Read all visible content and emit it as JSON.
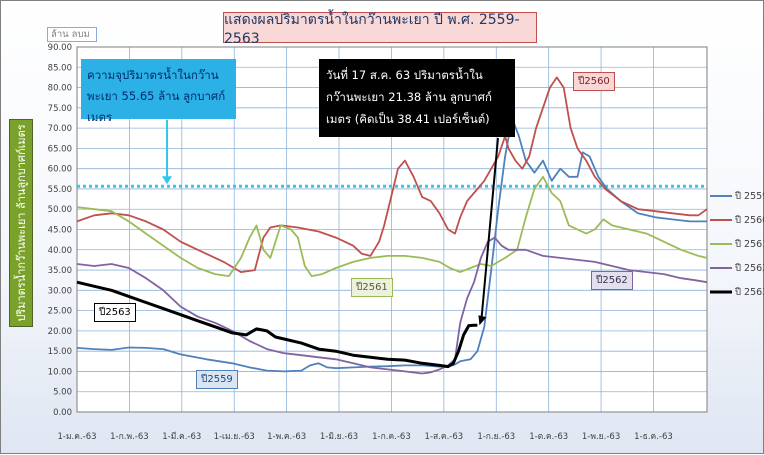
{
  "chart_data": {
    "type": "line",
    "title": "แสดงผลปริมาตรน้ำในกว๊านพะเยา ปี พ.ศ. 2559-2563",
    "unit_label": "ล้าน ลบม",
    "ylabel": "ปริมาตรน้ำกว๊านพะเยา ล้านลูกบาศก์เมตร",
    "ylim": [
      0,
      90
    ],
    "yticks": [
      "0.00",
      "5.00",
      "10.00",
      "15.00",
      "20.00",
      "25.00",
      "30.00",
      "35.00",
      "40.00",
      "45.00",
      "50.00",
      "55.00",
      "60.00",
      "65.00",
      "70.00",
      "75.00",
      "80.00",
      "85.00",
      "90.00"
    ],
    "xticks": [
      "1-ม.ค.-63",
      "1-ก.พ.-63",
      "1-มี.ค.-63",
      "1-เม.ย.-63",
      "1-พ.ค.-63",
      "1-มิ.ย.-63",
      "1-ก.ค.-63",
      "1-ส.ค.-63",
      "1-ก.ย.-63",
      "1-ต.ค.-63",
      "1-พ.ย.-63",
      "1-ธ.ค.-63"
    ],
    "grid": true,
    "legend_position": "right",
    "capacity": {
      "value": 55.65,
      "text": "ความจุปริมาตรน้ำในกว๊านพะเยา 55.65 ล้าน ลูกบาศก์เมตร"
    },
    "current_annotation": "วันที่  17 ส.ค. 63 ปริมาตรน้ำในกว๊านพะเยา 21.38 ล้าน ลูกบาศก์เมตร (คิดเป็น 38.41 เปอร์เซ็นต์)",
    "series": [
      {
        "name": "ปี 2559",
        "tag": "ปี2559",
        "color": "#4f81bd",
        "points": [
          [
            0,
            15.8
          ],
          [
            10,
            15.5
          ],
          [
            20,
            15.3
          ],
          [
            30,
            15.9
          ],
          [
            40,
            15.8
          ],
          [
            50,
            15.5
          ],
          [
            60,
            14.2
          ],
          [
            75,
            13.0
          ],
          [
            90,
            12.0
          ],
          [
            100,
            11.0
          ],
          [
            110,
            10.2
          ],
          [
            120,
            10.0
          ],
          [
            130,
            10.2
          ],
          [
            135,
            11.5
          ],
          [
            140,
            12.0
          ],
          [
            145,
            11.0
          ],
          [
            150,
            10.8
          ],
          [
            160,
            11.0
          ],
          [
            170,
            11.2
          ],
          [
            180,
            11.3
          ],
          [
            190,
            11.5
          ],
          [
            200,
            11.5
          ],
          [
            210,
            11.2
          ],
          [
            218,
            11.5
          ],
          [
            222,
            12.5
          ],
          [
            228,
            13.0
          ],
          [
            232,
            15.0
          ],
          [
            236,
            21.0
          ],
          [
            240,
            35.0
          ],
          [
            244,
            50.0
          ],
          [
            248,
            63.0
          ],
          [
            252,
            72.5
          ],
          [
            256,
            68.0
          ],
          [
            260,
            62.0
          ],
          [
            265,
            59.0
          ],
          [
            270,
            62.0
          ],
          [
            275,
            57.0
          ],
          [
            280,
            60.0
          ],
          [
            285,
            58.0
          ],
          [
            290,
            58.0
          ],
          [
            293,
            64.0
          ],
          [
            297,
            63.0
          ],
          [
            302,
            58.0
          ],
          [
            307,
            55.0
          ],
          [
            315,
            52.0
          ],
          [
            325,
            49.0
          ],
          [
            335,
            48.0
          ],
          [
            345,
            47.5
          ],
          [
            355,
            47.0
          ],
          [
            365,
            47.0
          ]
        ]
      },
      {
        "name": "ปี 2560",
        "tag": "ปี2560",
        "color": "#c0504d",
        "points": [
          [
            0,
            47.0
          ],
          [
            10,
            48.5
          ],
          [
            20,
            49.0
          ],
          [
            30,
            48.5
          ],
          [
            40,
            47.0
          ],
          [
            50,
            45.0
          ],
          [
            60,
            42.0
          ],
          [
            70,
            40.0
          ],
          [
            85,
            37.0
          ],
          [
            95,
            34.5
          ],
          [
            103,
            35.0
          ],
          [
            108,
            43.0
          ],
          [
            112,
            45.5
          ],
          [
            118,
            46.0
          ],
          [
            128,
            45.5
          ],
          [
            140,
            44.5
          ],
          [
            150,
            43.0
          ],
          [
            160,
            41.0
          ],
          [
            165,
            39.0
          ],
          [
            170,
            38.5
          ],
          [
            175,
            42.0
          ],
          [
            178,
            46.0
          ],
          [
            182,
            53.0
          ],
          [
            186,
            60.0
          ],
          [
            190,
            62.0
          ],
          [
            195,
            58.0
          ],
          [
            200,
            53.0
          ],
          [
            205,
            52.0
          ],
          [
            210,
            49.0
          ],
          [
            215,
            45.0
          ],
          [
            219,
            44.0
          ],
          [
            222,
            48.0
          ],
          [
            226,
            52.0
          ],
          [
            230,
            54.0
          ],
          [
            236,
            57.0
          ],
          [
            240,
            60.0
          ],
          [
            244,
            63.0
          ],
          [
            248,
            68.0
          ],
          [
            250,
            65.0
          ],
          [
            254,
            62.0
          ],
          [
            258,
            60.0
          ],
          [
            262,
            63.0
          ],
          [
            266,
            70.0
          ],
          [
            270,
            75.0
          ],
          [
            274,
            80.0
          ],
          [
            278,
            82.5
          ],
          [
            282,
            80.0
          ],
          [
            286,
            70.0
          ],
          [
            290,
            65.0
          ],
          [
            295,
            62.0
          ],
          [
            300,
            58.0
          ],
          [
            306,
            55.0
          ],
          [
            315,
            52.0
          ],
          [
            325,
            50.0
          ],
          [
            335,
            49.5
          ],
          [
            345,
            49.0
          ],
          [
            355,
            48.5
          ],
          [
            360,
            48.5
          ],
          [
            365,
            50.0
          ]
        ]
      },
      {
        "name": "ปี 2561",
        "tag": "ปี2561",
        "color": "#9bbb59",
        "points": [
          [
            0,
            50.5
          ],
          [
            10,
            50.0
          ],
          [
            20,
            49.5
          ],
          [
            30,
            47.0
          ],
          [
            40,
            44.0
          ],
          [
            50,
            41.0
          ],
          [
            60,
            38.0
          ],
          [
            70,
            35.5
          ],
          [
            80,
            34.0
          ],
          [
            88,
            33.5
          ],
          [
            95,
            38.0
          ],
          [
            100,
            43.0
          ],
          [
            104,
            46.0
          ],
          [
            108,
            40.0
          ],
          [
            112,
            38.0
          ],
          [
            118,
            46.0
          ],
          [
            124,
            45.0
          ],
          [
            128,
            43.0
          ],
          [
            132,
            36.0
          ],
          [
            136,
            33.5
          ],
          [
            142,
            34.0
          ],
          [
            150,
            35.5
          ],
          [
            160,
            37.0
          ],
          [
            170,
            38.0
          ],
          [
            180,
            38.5
          ],
          [
            190,
            38.5
          ],
          [
            200,
            38.0
          ],
          [
            210,
            37.0
          ],
          [
            216,
            35.5
          ],
          [
            222,
            34.5
          ],
          [
            228,
            35.5
          ],
          [
            234,
            36.5
          ],
          [
            240,
            36.0
          ],
          [
            248,
            38.0
          ],
          [
            255,
            40.0
          ],
          [
            260,
            48.0
          ],
          [
            265,
            55.0
          ],
          [
            270,
            58.0
          ],
          [
            275,
            54.0
          ],
          [
            280,
            52.0
          ],
          [
            285,
            46.0
          ],
          [
            290,
            45.0
          ],
          [
            295,
            44.0
          ],
          [
            300,
            45.0
          ],
          [
            305,
            47.5
          ],
          [
            310,
            46.0
          ],
          [
            320,
            45.0
          ],
          [
            330,
            44.0
          ],
          [
            340,
            42.0
          ],
          [
            350,
            40.0
          ],
          [
            360,
            38.5
          ],
          [
            365,
            38.0
          ]
        ]
      },
      {
        "name": "ปี 2562",
        "tag": "ปี2562",
        "color": "#8064a2",
        "points": [
          [
            0,
            36.5
          ],
          [
            10,
            36.0
          ],
          [
            20,
            36.5
          ],
          [
            30,
            35.5
          ],
          [
            40,
            33.0
          ],
          [
            50,
            30.0
          ],
          [
            60,
            26.0
          ],
          [
            70,
            23.5
          ],
          [
            80,
            22.0
          ],
          [
            90,
            20.0
          ],
          [
            100,
            17.5
          ],
          [
            110,
            15.5
          ],
          [
            120,
            14.5
          ],
          [
            130,
            14.0
          ],
          [
            140,
            13.5
          ],
          [
            150,
            13.0
          ],
          [
            160,
            12.0
          ],
          [
            170,
            11.0
          ],
          [
            180,
            10.5
          ],
          [
            190,
            10.0
          ],
          [
            200,
            9.5
          ],
          [
            205,
            9.8
          ],
          [
            210,
            10.5
          ],
          [
            215,
            11.5
          ],
          [
            219,
            13.0
          ],
          [
            222,
            22.0
          ],
          [
            226,
            28.0
          ],
          [
            230,
            32.0
          ],
          [
            234,
            38.0
          ],
          [
            238,
            42.0
          ],
          [
            242,
            43.0
          ],
          [
            246,
            41.0
          ],
          [
            250,
            40.0
          ],
          [
            260,
            40.0
          ],
          [
            270,
            38.5
          ],
          [
            280,
            38.0
          ],
          [
            290,
            37.5
          ],
          [
            300,
            37.0
          ],
          [
            310,
            36.0
          ],
          [
            320,
            35.0
          ],
          [
            330,
            34.5
          ],
          [
            340,
            34.0
          ],
          [
            350,
            33.0
          ],
          [
            358,
            32.5
          ],
          [
            365,
            32.0
          ]
        ]
      },
      {
        "name": "ปี 2563",
        "tag": "ปี2563",
        "color": "#000000",
        "points": [
          [
            0,
            32.0
          ],
          [
            10,
            31.0
          ],
          [
            20,
            30.0
          ],
          [
            30,
            28.5
          ],
          [
            40,
            27.0
          ],
          [
            50,
            25.5
          ],
          [
            60,
            24.0
          ],
          [
            70,
            22.5
          ],
          [
            80,
            21.0
          ],
          [
            90,
            19.5
          ],
          [
            98,
            19.0
          ],
          [
            104,
            20.5
          ],
          [
            110,
            20.0
          ],
          [
            115,
            18.5
          ],
          [
            120,
            18.0
          ],
          [
            130,
            17.0
          ],
          [
            140,
            15.5
          ],
          [
            150,
            15.0
          ],
          [
            160,
            14.0
          ],
          [
            170,
            13.5
          ],
          [
            180,
            13.0
          ],
          [
            190,
            12.8
          ],
          [
            200,
            12.0
          ],
          [
            210,
            11.5
          ],
          [
            215,
            11.2
          ],
          [
            218,
            12.0
          ],
          [
            221,
            15.0
          ],
          [
            224,
            19.0
          ],
          [
            227,
            21.3
          ],
          [
            230,
            21.4
          ],
          [
            232,
            21.38
          ]
        ]
      }
    ],
    "labels": [
      "ปี2559",
      "ปี2560",
      "ปี2561",
      "ปี2562",
      "ปี2563"
    ]
  },
  "colors": {
    "capacity_line": "#33c7e8"
  }
}
